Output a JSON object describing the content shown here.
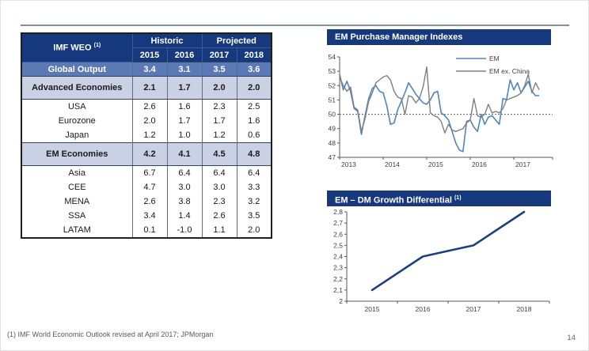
{
  "page": {
    "footnote": "(1) IMF World Economic Outlook revised at April 2017; JPMorgan",
    "number": "14"
  },
  "colors": {
    "navy": "#15397c",
    "global_row_blue": "#5b79b4",
    "section_row_periwinkle": "#cbd1e5",
    "em_line_blue": "#4f86c0",
    "ex_china_gray": "#7f7f7f",
    "diff_line_navy": "#1c3f7e",
    "reference_line_gray": "#737373"
  },
  "table": {
    "title": "IMF WEO",
    "title_sup": "(1)",
    "col_groups": [
      "Historic",
      "Projected"
    ],
    "years": [
      "2015",
      "2016",
      "2017",
      "2018"
    ],
    "rows": [
      {
        "label": "Global Output",
        "values": [
          "3.4",
          "3.1",
          "3.5",
          "3.6"
        ],
        "style": "highlight-blue"
      },
      {
        "label": "Advanced Economies",
        "values": [
          "2.1",
          "1.7",
          "2.0",
          "2.0"
        ],
        "style": "section"
      },
      {
        "label": "USA",
        "values": [
          "2.6",
          "1.6",
          "2.3",
          "2.5"
        ],
        "style": "detail"
      },
      {
        "label": "Eurozone",
        "values": [
          "2.0",
          "1.7",
          "1.7",
          "1.6"
        ],
        "style": "detail"
      },
      {
        "label": "Japan",
        "values": [
          "1.2",
          "1.0",
          "1.2",
          "0.6"
        ],
        "style": "detail"
      },
      {
        "label": "EM Economies",
        "values": [
          "4.2",
          "4.1",
          "4.5",
          "4.8"
        ],
        "style": "section"
      },
      {
        "label": "Asia",
        "values": [
          "6.7",
          "6.4",
          "6.4",
          "6.4"
        ],
        "style": "detail"
      },
      {
        "label": "CEE",
        "values": [
          "4.7",
          "3.0",
          "3.0",
          "3.3"
        ],
        "style": "detail"
      },
      {
        "label": "MENA",
        "values": [
          "2.6",
          "3.8",
          "2.3",
          "3.2"
        ],
        "style": "detail"
      },
      {
        "label": "SSA",
        "values": [
          "3.4",
          "1.4",
          "2.6",
          "3.5"
        ],
        "style": "detail"
      },
      {
        "label": "LATAM",
        "values": [
          "0.1",
          "-1.0",
          "1.1",
          "2.0"
        ],
        "style": "detail"
      }
    ]
  },
  "chart_data": [
    {
      "type": "line",
      "title": "EM Purchase Manager Indexes",
      "x_start_year": 2013,
      "x_frequency": "monthly",
      "xticks": [
        "2013",
        "2014",
        "2015",
        "2016",
        "2017"
      ],
      "ylim": [
        47,
        54
      ],
      "yticks": [
        47,
        48,
        49,
        50,
        51,
        52,
        53,
        54
      ],
      "reference_line": 50,
      "legend_position": "top-right-inside",
      "series": [
        {
          "name": "EM",
          "color": "#4f86c0",
          "values": [
            52.8,
            51.7,
            52.3,
            51.6,
            50.4,
            50.2,
            48.6,
            49.9,
            51.1,
            51.8,
            52.0,
            51.6,
            51.5,
            50.6,
            49.3,
            49.4,
            50.3,
            50.9,
            51.5,
            52.2,
            51.8,
            51.4,
            51.1,
            50.8,
            50.7,
            51.0,
            51.5,
            51.6,
            50.1,
            49.9,
            49.6,
            48.8,
            48.0,
            47.5,
            47.4,
            49.5,
            49.6,
            49.1,
            48.8,
            50.0,
            49.3,
            49.8,
            49.9,
            49.6,
            49.3,
            51.1,
            51.0,
            52.4,
            51.7,
            52.2,
            51.5,
            51.9,
            52.3,
            51.6,
            51.3,
            51.3
          ]
        },
        {
          "name": "EM ex. China",
          "color": "#7f7f7f",
          "values": [
            52.6,
            52.0,
            51.6,
            51.9,
            50.5,
            50.3,
            48.8,
            49.7,
            50.9,
            51.5,
            52.2,
            52.4,
            52.6,
            52.7,
            52.4,
            51.6,
            51.2,
            51.1,
            50.0,
            51.3,
            51.2,
            50.8,
            51.1,
            51.9,
            53.3,
            50.1,
            49.9,
            49.8,
            49.5,
            48.7,
            49.3,
            48.9,
            48.8,
            48.9,
            49.0,
            49.4,
            49.6,
            51.1,
            49.9,
            49.8,
            50.0,
            50.7,
            50.1,
            50.2,
            50.1,
            50.4,
            51.0,
            51.1,
            51.2,
            51.3,
            51.5,
            52.0,
            52.8,
            51.5,
            52.2,
            51.7
          ]
        }
      ]
    },
    {
      "type": "line",
      "title": "EM – DM Growth Differential",
      "title_sup": "(1)",
      "xticks": [
        "2015",
        "2016",
        "2017",
        "2018"
      ],
      "x": [
        2015,
        2016,
        2016.5,
        2017,
        2018
      ],
      "values": [
        2.1,
        2.4,
        2.45,
        2.5,
        2.8
      ],
      "year_values": {
        "2015": 2.1,
        "2016": 2.4,
        "2017": 2.5,
        "2018": 2.8
      },
      "ylim": [
        2.0,
        2.8
      ],
      "ytick_labels": [
        "2",
        "2,1",
        "2,2",
        "2,3",
        "2,4",
        "2,5",
        "2,6",
        "2,7",
        "2,8"
      ],
      "line_color": "#1c3f7e"
    }
  ]
}
